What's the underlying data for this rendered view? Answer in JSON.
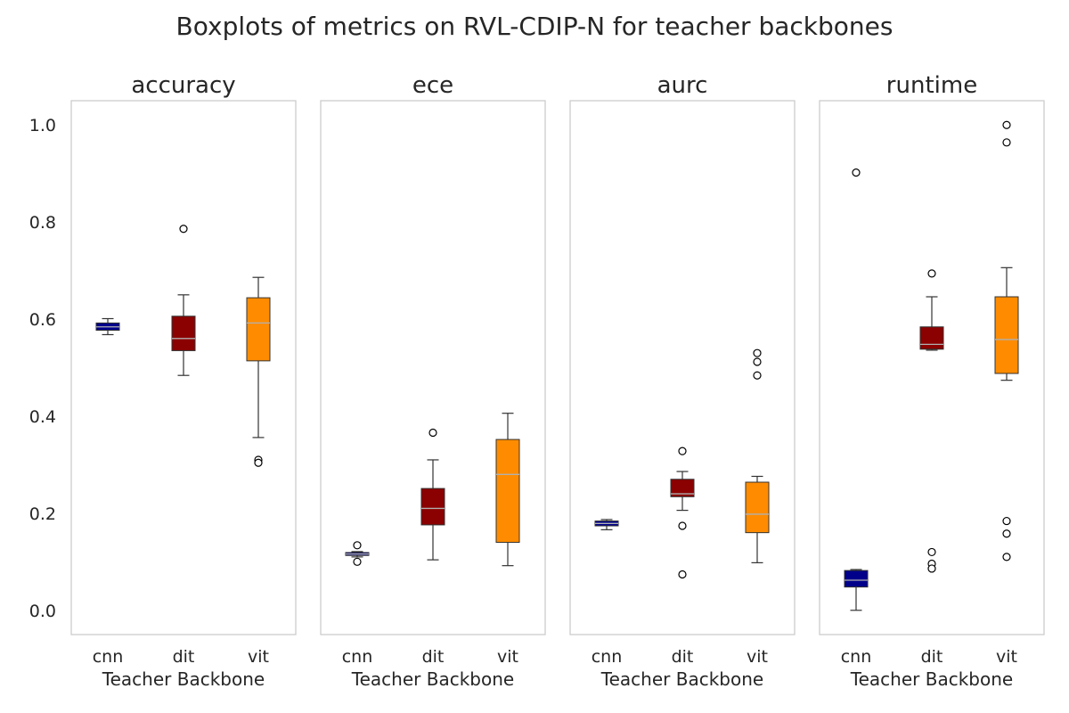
{
  "chart_data": {
    "type": "boxplot",
    "title": "Boxplots of metrics on RVL-CDIP-N for teacher backbones",
    "xlabel": "Teacher Backbone",
    "categories": [
      "cnn",
      "dit",
      "vit"
    ],
    "colors": {
      "cnn": "#00008b",
      "dit": "#8b0000",
      "vit": "#ff8c00"
    },
    "ylim": [
      -0.05,
      1.05
    ],
    "yticks": [
      0.0,
      0.2,
      0.4,
      0.6,
      0.8,
      1.0
    ],
    "ytick_labels": [
      "0.0",
      "0.2",
      "0.4",
      "0.6",
      "0.8",
      "1.0"
    ],
    "grid": false,
    "panels": [
      {
        "title": "accuracy",
        "boxes": [
          {
            "category": "cnn",
            "whisker_low": 0.568,
            "q1": 0.577,
            "median": 0.584,
            "q3": 0.592,
            "whisker_high": 0.601,
            "outliers": []
          },
          {
            "category": "dit",
            "whisker_low": 0.484,
            "q1": 0.535,
            "median": 0.56,
            "q3": 0.606,
            "whisker_high": 0.65,
            "outliers": [
              0.786
            ]
          },
          {
            "category": "vit",
            "whisker_low": 0.356,
            "q1": 0.514,
            "median": 0.592,
            "q3": 0.644,
            "whisker_high": 0.686,
            "outliers": [
              0.31,
              0.304
            ]
          }
        ]
      },
      {
        "title": "ece",
        "boxes": [
          {
            "category": "cnn",
            "whisker_low": 0.11,
            "q1": 0.113,
            "median": 0.116,
            "q3": 0.119,
            "whisker_high": 0.121,
            "outliers": [
              0.134,
              0.1
            ]
          },
          {
            "category": "dit",
            "whisker_low": 0.104,
            "q1": 0.176,
            "median": 0.21,
            "q3": 0.251,
            "whisker_high": 0.31,
            "outliers": [
              0.366
            ]
          },
          {
            "category": "vit",
            "whisker_low": 0.092,
            "q1": 0.14,
            "median": 0.28,
            "q3": 0.352,
            "whisker_high": 0.406,
            "outliers": []
          }
        ]
      },
      {
        "title": "aurc",
        "boxes": [
          {
            "category": "cnn",
            "whisker_low": 0.166,
            "q1": 0.174,
            "median": 0.179,
            "q3": 0.184,
            "whisker_high": 0.187,
            "outliers": []
          },
          {
            "category": "dit",
            "whisker_low": 0.206,
            "q1": 0.234,
            "median": 0.24,
            "q3": 0.27,
            "whisker_high": 0.286,
            "outliers": [
              0.328,
              0.174,
              0.074
            ]
          },
          {
            "category": "vit",
            "whisker_low": 0.098,
            "q1": 0.16,
            "median": 0.198,
            "q3": 0.264,
            "whisker_high": 0.276,
            "outliers": [
              0.53,
              0.512,
              0.484
            ]
          }
        ]
      },
      {
        "title": "runtime",
        "boxes": [
          {
            "category": "cnn",
            "whisker_low": 0.0,
            "q1": 0.048,
            "median": 0.062,
            "q3": 0.082,
            "whisker_high": 0.084,
            "outliers": [
              0.902
            ]
          },
          {
            "category": "dit",
            "whisker_low": 0.536,
            "q1": 0.538,
            "median": 0.548,
            "q3": 0.584,
            "whisker_high": 0.646,
            "outliers": [
              0.694,
              0.12,
              0.096,
              0.086
            ]
          },
          {
            "category": "vit",
            "whisker_low": 0.474,
            "q1": 0.488,
            "median": 0.558,
            "q3": 0.646,
            "whisker_high": 0.706,
            "outliers": [
              1.0,
              0.964,
              0.184,
              0.158,
              0.11
            ]
          }
        ]
      }
    ]
  }
}
